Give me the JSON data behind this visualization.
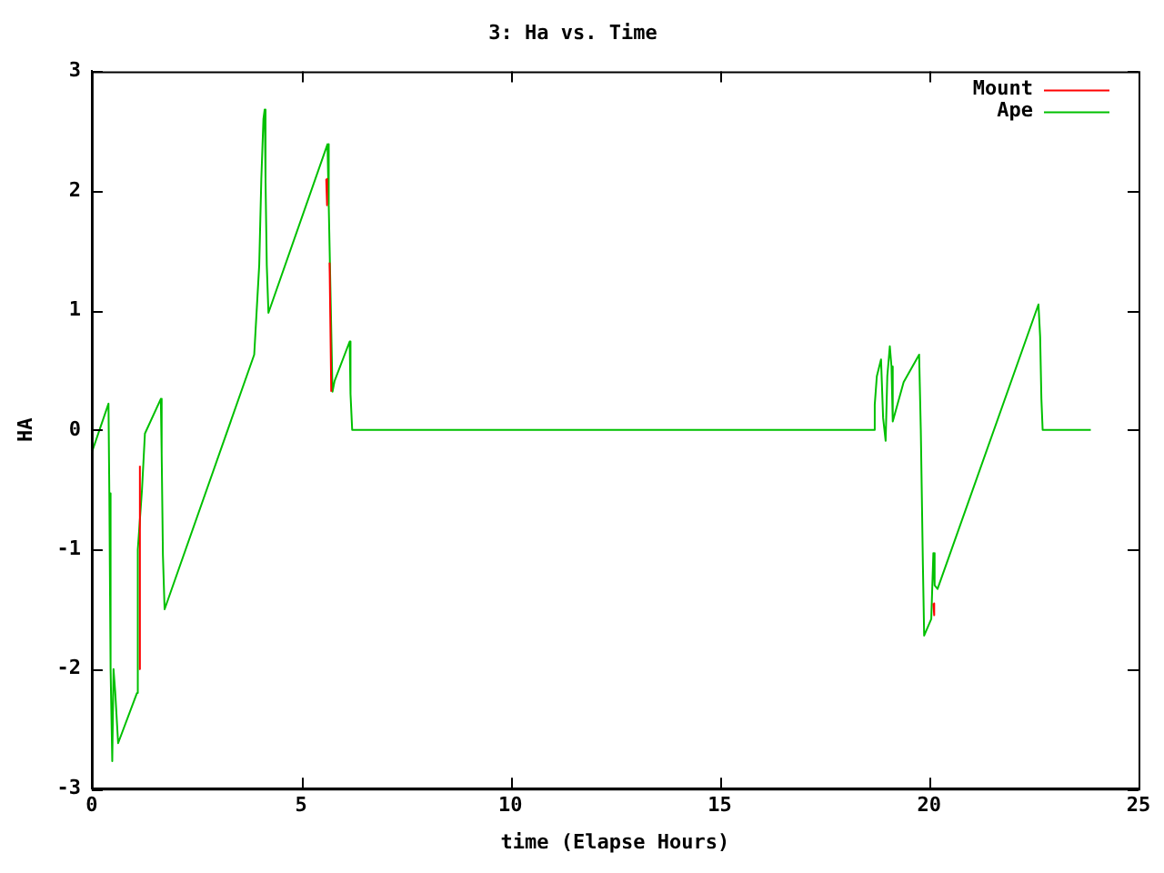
{
  "chart_data": {
    "type": "line",
    "title": "3: Ha vs. Time",
    "xlabel": "time (Elapse Hours)",
    "ylabel": "HA",
    "xlim": [
      0,
      25
    ],
    "xticks": [
      0,
      5,
      10,
      15,
      20,
      25
    ],
    "ylim": [
      -3,
      3
    ],
    "yticks": [
      -3,
      -2,
      -1,
      0,
      1,
      2,
      3
    ],
    "grid": false,
    "legend": "top right",
    "marker": "none",
    "line_style": "solid",
    "series": [
      {
        "name": "Ape",
        "color": "#00c000",
        "x": [
          0,
          0.4,
          0.42,
          0.45,
          0.49,
          0.52,
          0.56,
          0.63,
          1.08,
          1.1,
          1.2,
          1.27,
          1.65,
          1.67,
          1.7,
          1.74,
          3.88,
          3.92,
          4.0,
          4.05,
          4.1,
          4.13,
          4.15,
          4.18,
          4.22,
          5.63,
          5.66,
          5.75,
          5.8,
          6.16,
          6.18,
          6.22,
          18.66,
          18.7,
          18.75,
          18.85,
          18.9,
          18.96,
          19.0,
          19.06,
          19.1,
          19.13,
          19.39,
          19.76,
          19.8,
          19.85,
          19.88,
          20.05,
          20.1,
          20.13,
          20.2,
          22.61,
          22.65,
          22.68,
          22.71,
          23.86
        ],
        "values": [
          -0.19,
          0.22,
          -0.53,
          -2.0,
          -2.77,
          -2.0,
          -2.19,
          -2.62,
          -2.2,
          -1.0,
          -0.5,
          -0.03,
          0.26,
          -0.2,
          -1.05,
          -1.5,
          0.63,
          0.88,
          1.38,
          2.1,
          2.6,
          2.68,
          2.1,
          1.38,
          0.98,
          2.39,
          1.88,
          0.32,
          0.41,
          0.74,
          0.3,
          0,
          0,
          0.21,
          0.45,
          0.59,
          0.1,
          -0.09,
          0.45,
          0.7,
          0.53,
          0.07,
          0.4,
          0.63,
          0.0,
          -1.13,
          -1.72,
          -1.58,
          -1.03,
          -1.3,
          -1.33,
          1.05,
          0.78,
          0.26,
          0,
          0
        ]
      },
      {
        "name": "Mount",
        "color": "#ff0000",
        "x": [
          1.13,
          1.15,
          1.16,
          5.6,
          5.62,
          5.64,
          5.68,
          5.72,
          5.73,
          20.1,
          20.12
        ],
        "values": [
          -2.0,
          -0.3,
          null,
          2.1,
          1.88,
          null,
          1.4,
          0.32,
          null,
          -1.45,
          -1.55
        ]
      }
    ]
  }
}
